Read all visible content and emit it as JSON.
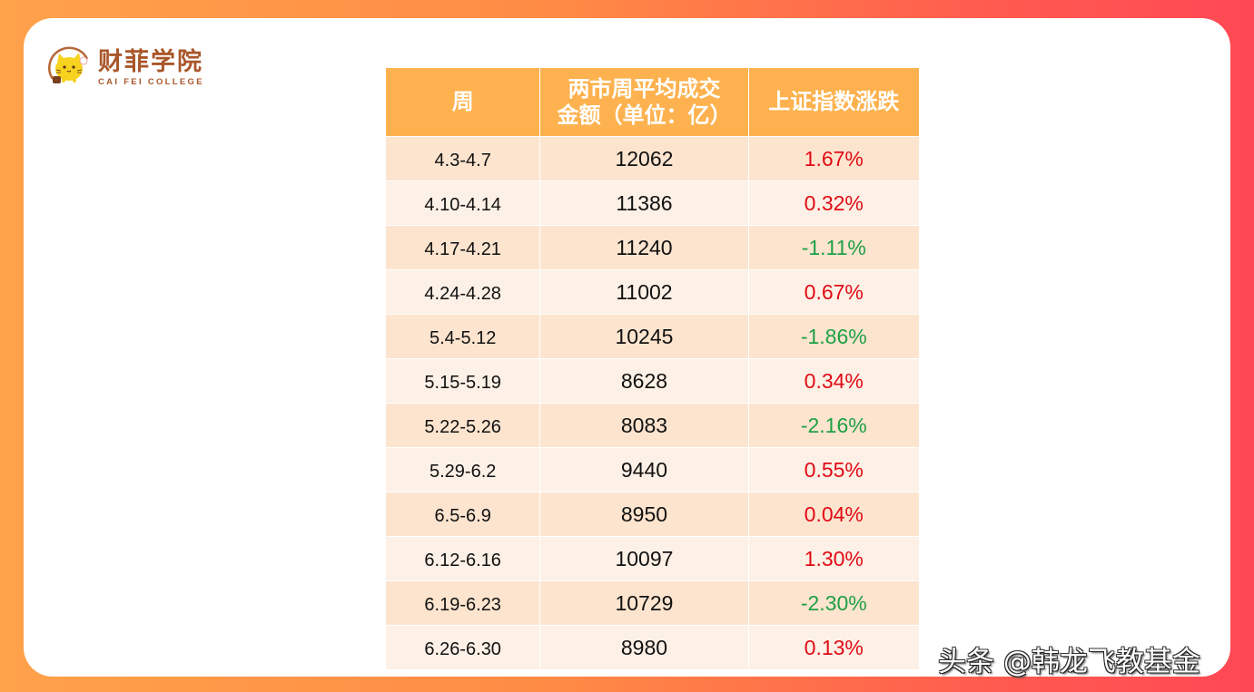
{
  "logo": {
    "name_cn": "财菲学院",
    "name_en": "CAI  FEI  COLLEGE",
    "icon": "cat-mascot-icon",
    "brand_color": "#a9562a"
  },
  "table": {
    "headers": [
      "周",
      "两市周平均成交金额（单位：亿）",
      "上证指数涨跌"
    ],
    "header_lines": {
      "col2_line1": "两市周平均成交",
      "col2_line2": "金额（单位：亿）"
    },
    "colors": {
      "header_bg": "#fdb24f",
      "row_odd_bg": "#fde4cf",
      "row_even_bg": "#fdf0e6",
      "positive": "#e00b14",
      "negative": "#1fa045"
    },
    "rows": [
      {
        "week": "4.3-4.7",
        "volume": "12062",
        "change": "1.67%"
      },
      {
        "week": "4.10-4.14",
        "volume": "11386",
        "change": "0.32%"
      },
      {
        "week": "4.17-4.21",
        "volume": "11240",
        "change": "-1.11%"
      },
      {
        "week": "4.24-4.28",
        "volume": "11002",
        "change": "0.67%"
      },
      {
        "week": "5.4-5.12",
        "volume": "10245",
        "change": "-1.86%"
      },
      {
        "week": "5.15-5.19",
        "volume": "8628",
        "change": "0.34%"
      },
      {
        "week": "5.22-5.26",
        "volume": "8083",
        "change": "-2.16%"
      },
      {
        "week": "5.29-6.2",
        "volume": "9440",
        "change": "0.55%"
      },
      {
        "week": "6.5-6.9",
        "volume": "8950",
        "change": "0.04%"
      },
      {
        "week": "6.12-6.16",
        "volume": "10097",
        "change": "1.30%"
      },
      {
        "week": "6.19-6.23",
        "volume": "10729",
        "change": "-2.30%"
      },
      {
        "week": "6.26-6.30",
        "volume": "8980",
        "change": "0.13%"
      }
    ]
  },
  "watermark": "头条 @韩龙飞教基金"
}
